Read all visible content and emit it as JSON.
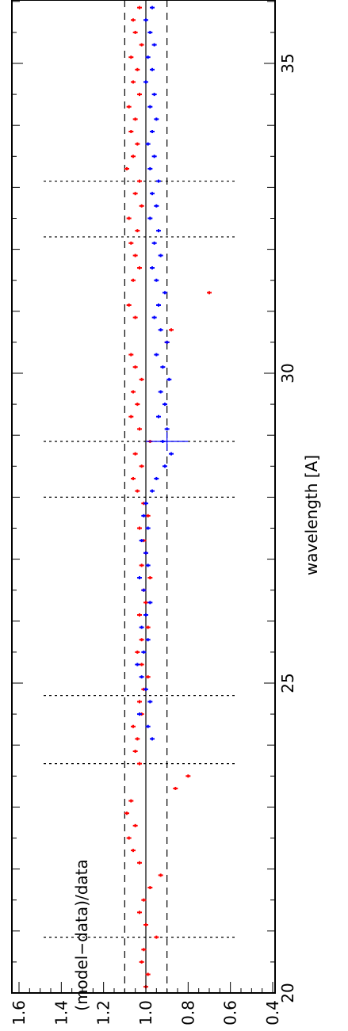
{
  "chart_data": {
    "type": "scatter",
    "orientation": "rotated-90-clockwise",
    "xlabel": "wavelength  [A]",
    "ylabel": "(model−data)/data",
    "xlim": [
      20,
      36.5
    ],
    "ylim": [
      0.4,
      1.7
    ],
    "x_ticks": [
      20,
      25,
      30,
      35
    ],
    "x_tick_labels": [
      "20",
      "25",
      "30",
      "35"
    ],
    "y_ticks": [
      0.4,
      0.6,
      0.8,
      1.0,
      1.2,
      1.4,
      1.6
    ],
    "y_tick_labels": [
      "0.4",
      "0.6",
      "0.8",
      "1.0",
      "1.2",
      "1.4",
      "1.6"
    ],
    "reference_lines": {
      "solid": 1.0,
      "dashed": [
        0.9,
        1.1
      ],
      "dotted_wavelengths": [
        20.9,
        23.7,
        24.8,
        28.0,
        28.9,
        32.2,
        33.1
      ]
    },
    "series": [
      {
        "color": "#ff0000",
        "points": [
          [
            20.1,
            1.0
          ],
          [
            20.3,
            0.99
          ],
          [
            20.5,
            1.02
          ],
          [
            20.7,
            1.01
          ],
          [
            20.9,
            0.95
          ],
          [
            21.1,
            1.0
          ],
          [
            21.3,
            1.03
          ],
          [
            21.5,
            1.01
          ],
          [
            21.7,
            0.98
          ],
          [
            21.9,
            0.93
          ],
          [
            22.1,
            1.03
          ],
          [
            22.3,
            1.06
          ],
          [
            22.5,
            1.08
          ],
          [
            22.7,
            1.05
          ],
          [
            22.9,
            1.09
          ],
          [
            23.1,
            1.07
          ],
          [
            23.3,
            0.86
          ],
          [
            23.5,
            0.8
          ],
          [
            23.7,
            1.03
          ],
          [
            23.9,
            1.05
          ],
          [
            24.1,
            1.04
          ],
          [
            24.3,
            1.06
          ],
          [
            24.5,
            1.02
          ],
          [
            24.7,
            1.03
          ],
          [
            24.9,
            1.01
          ],
          [
            25.1,
            0.99
          ],
          [
            25.3,
            1.02
          ],
          [
            25.5,
            1.04
          ],
          [
            25.7,
            1.02
          ],
          [
            25.9,
            0.99
          ],
          [
            26.1,
            1.03
          ],
          [
            26.3,
            1.0
          ],
          [
            26.5,
            1.01
          ],
          [
            26.7,
            0.98
          ],
          [
            26.9,
            1.02
          ],
          [
            27.1,
            1.0
          ],
          [
            27.3,
            1.01
          ],
          [
            27.5,
            1.03
          ],
          [
            27.7,
            0.99
          ],
          [
            27.9,
            1.01
          ],
          [
            28.1,
            1.04
          ],
          [
            28.3,
            1.06
          ],
          [
            28.5,
            1.02
          ],
          [
            28.7,
            1.05
          ],
          [
            28.9,
            0.98
          ],
          [
            29.1,
            1.03
          ],
          [
            29.3,
            1.07
          ],
          [
            29.5,
            1.04
          ],
          [
            29.7,
            1.06
          ],
          [
            29.9,
            1.02
          ],
          [
            30.1,
            1.05
          ],
          [
            30.3,
            1.07
          ],
          [
            30.5,
            0.9
          ],
          [
            30.7,
            0.88
          ],
          [
            30.9,
            1.05
          ],
          [
            31.1,
            1.08
          ],
          [
            31.3,
            0.7
          ],
          [
            31.5,
            1.06
          ],
          [
            31.7,
            1.03
          ],
          [
            31.9,
            1.05
          ],
          [
            32.1,
            1.07
          ],
          [
            32.3,
            1.04
          ],
          [
            32.5,
            1.08
          ],
          [
            32.7,
            1.02
          ],
          [
            32.9,
            1.05
          ],
          [
            33.1,
            1.03
          ],
          [
            33.3,
            1.09
          ],
          [
            33.5,
            1.06
          ],
          [
            33.7,
            1.04
          ],
          [
            33.9,
            1.07
          ],
          [
            34.1,
            1.05
          ],
          [
            34.3,
            1.08
          ],
          [
            34.5,
            1.03
          ],
          [
            34.7,
            1.06
          ],
          [
            34.9,
            1.04
          ],
          [
            35.1,
            1.07
          ],
          [
            35.3,
            1.02
          ],
          [
            35.5,
            1.05
          ],
          [
            35.7,
            1.06
          ],
          [
            35.9,
            1.03
          ],
          [
            36.1,
            1.05
          ],
          [
            36.3,
            1.04
          ]
        ]
      },
      {
        "color": "#0000ff",
        "points": [
          [
            24.1,
            0.97
          ],
          [
            24.3,
            0.99
          ],
          [
            24.5,
            1.03
          ],
          [
            24.7,
            0.98
          ],
          [
            24.9,
            1.0
          ],
          [
            25.1,
            1.02
          ],
          [
            25.3,
            1.04
          ],
          [
            25.5,
            1.01
          ],
          [
            25.7,
            0.99
          ],
          [
            25.9,
            1.02
          ],
          [
            26.1,
            1.0
          ],
          [
            26.3,
            0.98
          ],
          [
            26.5,
            1.01
          ],
          [
            26.7,
            1.03
          ],
          [
            26.9,
            0.99
          ],
          [
            27.1,
            1.0
          ],
          [
            27.3,
            1.02
          ],
          [
            27.5,
            0.99
          ],
          [
            27.7,
            1.01
          ],
          [
            27.9,
            1.0
          ],
          [
            28.1,
            0.97
          ],
          [
            28.3,
            0.95
          ],
          [
            28.5,
            0.91
          ],
          [
            28.7,
            0.88
          ],
          [
            28.9,
            0.92
          ],
          [
            29.1,
            0.9
          ],
          [
            29.3,
            0.94
          ],
          [
            29.5,
            0.91
          ],
          [
            29.7,
            0.93
          ],
          [
            29.9,
            0.89
          ],
          [
            30.1,
            0.92
          ],
          [
            30.3,
            0.95
          ],
          [
            30.5,
            0.9
          ],
          [
            30.7,
            0.93
          ],
          [
            30.9,
            0.96
          ],
          [
            31.1,
            0.94
          ],
          [
            31.3,
            0.91
          ],
          [
            31.5,
            0.95
          ],
          [
            31.7,
            0.97
          ],
          [
            31.9,
            0.93
          ],
          [
            32.1,
            0.96
          ],
          [
            32.3,
            0.94
          ],
          [
            32.5,
            0.98
          ],
          [
            32.7,
            0.95
          ],
          [
            32.9,
            0.97
          ],
          [
            33.1,
            0.94
          ],
          [
            33.3,
            0.98
          ],
          [
            33.5,
            0.96
          ],
          [
            33.7,
            0.99
          ],
          [
            33.9,
            0.97
          ],
          [
            34.1,
            0.95
          ],
          [
            34.3,
            0.98
          ],
          [
            34.5,
            0.96
          ],
          [
            34.7,
            1.0
          ],
          [
            34.9,
            0.97
          ],
          [
            35.1,
            0.99
          ],
          [
            35.3,
            0.96
          ],
          [
            35.5,
            0.98
          ],
          [
            35.7,
            1.0
          ],
          [
            35.9,
            0.97
          ],
          [
            36.1,
            0.99
          ],
          [
            36.3,
            0.98
          ]
        ],
        "error_bar": {
          "x": 28.9,
          "y": 0.9,
          "xerr": 0.15,
          "yerr": 0.1
        }
      }
    ]
  }
}
